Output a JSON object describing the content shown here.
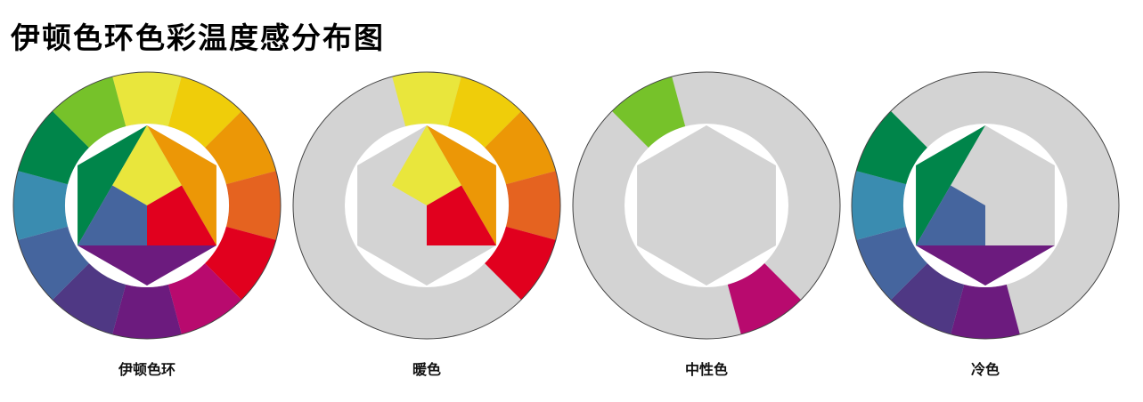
{
  "title": "伊顿色环色彩温度感分布图",
  "colors": {
    "yellow": "#E9E63C",
    "yellow_orange": "#EFCD0A",
    "orange": "#EC9706",
    "red_orange": "#E56320",
    "red": "#E1001E",
    "red_purple": "#B80A6E",
    "purple": "#6C1B7E",
    "blue_purple": "#4F3884",
    "blue": "#45659E",
    "green_blue": "#3A8CB0",
    "green": "#00854A",
    "yellow_green": "#76C22A",
    "neutral": "#D3D3D3",
    "center_blue": "#45659E"
  },
  "wheels": [
    {
      "caption": "伊顿色环"
    },
    {
      "caption": "暖色"
    },
    {
      "caption": "中性色"
    },
    {
      "caption": "冷色"
    }
  ]
}
